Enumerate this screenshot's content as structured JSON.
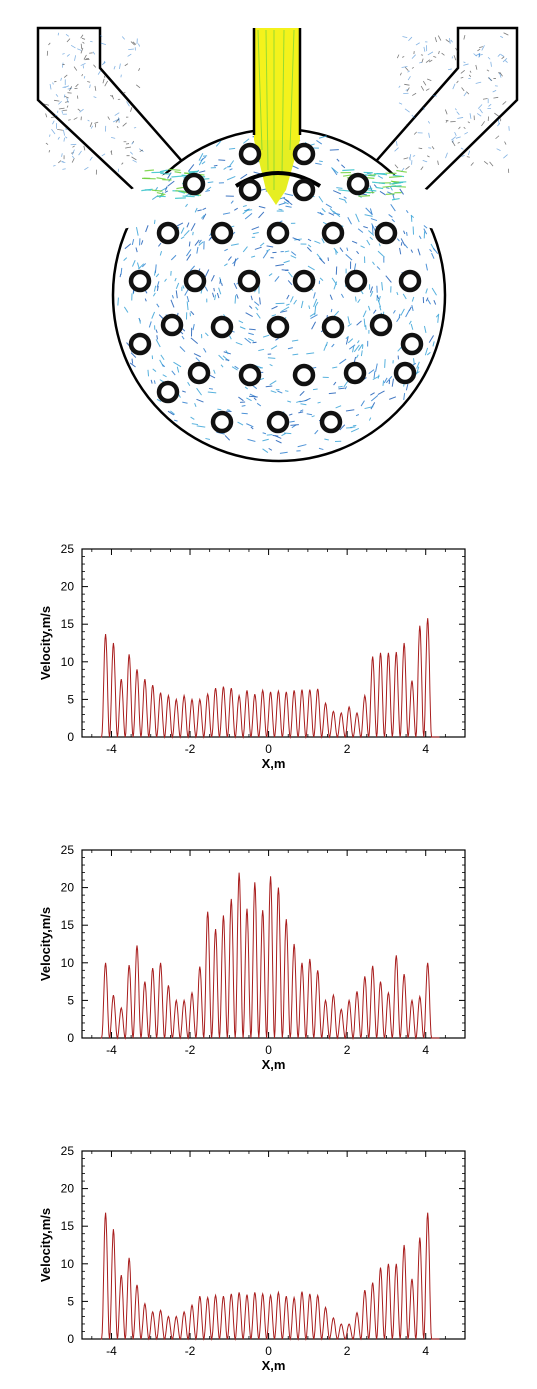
{
  "figure": {
    "colors": {
      "fluid_fast": "#f4f21c",
      "fluid_mid": "#6fd23a",
      "fluid_slow": "#2f7fd0",
      "tube_ring": "#111111",
      "series_line": "#a81c1c"
    }
  },
  "chart_data": [
    {
      "type": "line",
      "xlabel": "X,m",
      "ylabel": "Velocity,m/s",
      "xlim": [
        -4.75,
        5.0
      ],
      "ylim": [
        0,
        25
      ],
      "xticks": [
        -4,
        -2,
        0,
        2,
        4
      ],
      "yticks": [
        0,
        5,
        10,
        15,
        20,
        25
      ],
      "grid": false,
      "series": [
        {
          "peaks_x": [
            -4.15,
            -3.95,
            -3.75,
            -3.55,
            -3.35,
            -3.15,
            -2.95,
            -2.75,
            -2.55,
            -2.35,
            -2.15,
            -1.95,
            -1.75,
            -1.55,
            -1.35,
            -1.15,
            -0.95,
            -0.75,
            -0.55,
            -0.35,
            -0.15,
            0.05,
            0.25,
            0.45,
            0.65,
            0.85,
            1.05,
            1.25,
            1.45,
            1.65,
            1.85,
            2.05,
            2.25,
            2.45,
            2.65,
            2.85,
            3.05,
            3.25,
            3.45,
            3.65,
            3.85,
            4.05,
            4.25
          ],
          "peaks_y": [
            13.7,
            12.5,
            7.7,
            11.0,
            9.0,
            7.7,
            6.9,
            5.9,
            5.5,
            5.0,
            5.5,
            5.0,
            5.0,
            5.7,
            6.5,
            6.7,
            6.5,
            5.5,
            6.2,
            5.7,
            6.2,
            6.0,
            6.1,
            6.0,
            6.2,
            6.3,
            6.3,
            6.4,
            4.5,
            3.4,
            3.2,
            4.0,
            3.2,
            5.5,
            10.7,
            11.2,
            11.2,
            11.3,
            12.5,
            7.5,
            14.8,
            15.8,
            0
          ]
        }
      ]
    },
    {
      "type": "line",
      "xlabel": "X,m",
      "ylabel": "Velocity,m/s",
      "xlim": [
        -4.75,
        5.0
      ],
      "ylim": [
        0,
        25
      ],
      "xticks": [
        -4,
        -2,
        0,
        2,
        4
      ],
      "yticks": [
        0,
        5,
        10,
        15,
        20,
        25
      ],
      "grid": false,
      "series": [
        {
          "peaks_x": [
            -4.15,
            -3.95,
            -3.75,
            -3.55,
            -3.35,
            -3.15,
            -2.95,
            -2.75,
            -2.55,
            -2.35,
            -2.15,
            -1.95,
            -1.75,
            -1.55,
            -1.35,
            -1.15,
            -0.95,
            -0.75,
            -0.55,
            -0.35,
            -0.15,
            0.05,
            0.25,
            0.45,
            0.65,
            0.85,
            1.05,
            1.25,
            1.45,
            1.65,
            1.85,
            2.05,
            2.25,
            2.45,
            2.65,
            2.85,
            3.05,
            3.25,
            3.45,
            3.65,
            3.85,
            4.05,
            4.25
          ],
          "peaks_y": [
            10.0,
            5.7,
            4.0,
            9.7,
            12.3,
            7.5,
            9.3,
            10.0,
            7.0,
            5.0,
            5.0,
            6.0,
            9.5,
            16.8,
            14.5,
            16.3,
            18.5,
            22.0,
            17.2,
            20.7,
            17.0,
            21.5,
            20.0,
            15.8,
            12.5,
            10.0,
            10.5,
            9.0,
            5.0,
            5.7,
            3.8,
            5.0,
            6.2,
            8.2,
            9.6,
            7.5,
            6.0,
            11.0,
            8.5,
            5.0,
            5.5,
            10.0,
            0
          ]
        }
      ]
    },
    {
      "type": "line",
      "xlabel": "X,m",
      "ylabel": "Velocity,m/s",
      "xlim": [
        -4.75,
        5.0
      ],
      "ylim": [
        0,
        25
      ],
      "xticks": [
        -4,
        -2,
        0,
        2,
        4
      ],
      "yticks": [
        0,
        5,
        10,
        15,
        20,
        25
      ],
      "grid": false,
      "series": [
        {
          "peaks_x": [
            -4.15,
            -3.95,
            -3.75,
            -3.55,
            -3.35,
            -3.15,
            -2.95,
            -2.75,
            -2.55,
            -2.35,
            -2.15,
            -1.95,
            -1.75,
            -1.55,
            -1.35,
            -1.15,
            -0.95,
            -0.75,
            -0.55,
            -0.35,
            -0.15,
            0.05,
            0.25,
            0.45,
            0.65,
            0.85,
            1.05,
            1.25,
            1.45,
            1.65,
            1.85,
            2.05,
            2.25,
            2.45,
            2.65,
            2.85,
            3.05,
            3.25,
            3.45,
            3.65,
            3.85,
            4.05,
            4.25
          ],
          "peaks_y": [
            16.8,
            14.6,
            8.5,
            10.8,
            7.2,
            4.7,
            3.6,
            3.8,
            3.0,
            3.0,
            3.6,
            4.5,
            5.7,
            5.5,
            5.8,
            5.7,
            6.0,
            6.2,
            5.9,
            6.2,
            6.0,
            5.8,
            6.2,
            5.7,
            5.5,
            6.3,
            6.0,
            5.8,
            4.2,
            2.8,
            2.0,
            2.0,
            3.5,
            6.5,
            7.5,
            9.5,
            10.0,
            10.0,
            12.5,
            8.0,
            13.5,
            16.8,
            0
          ]
        }
      ]
    }
  ]
}
